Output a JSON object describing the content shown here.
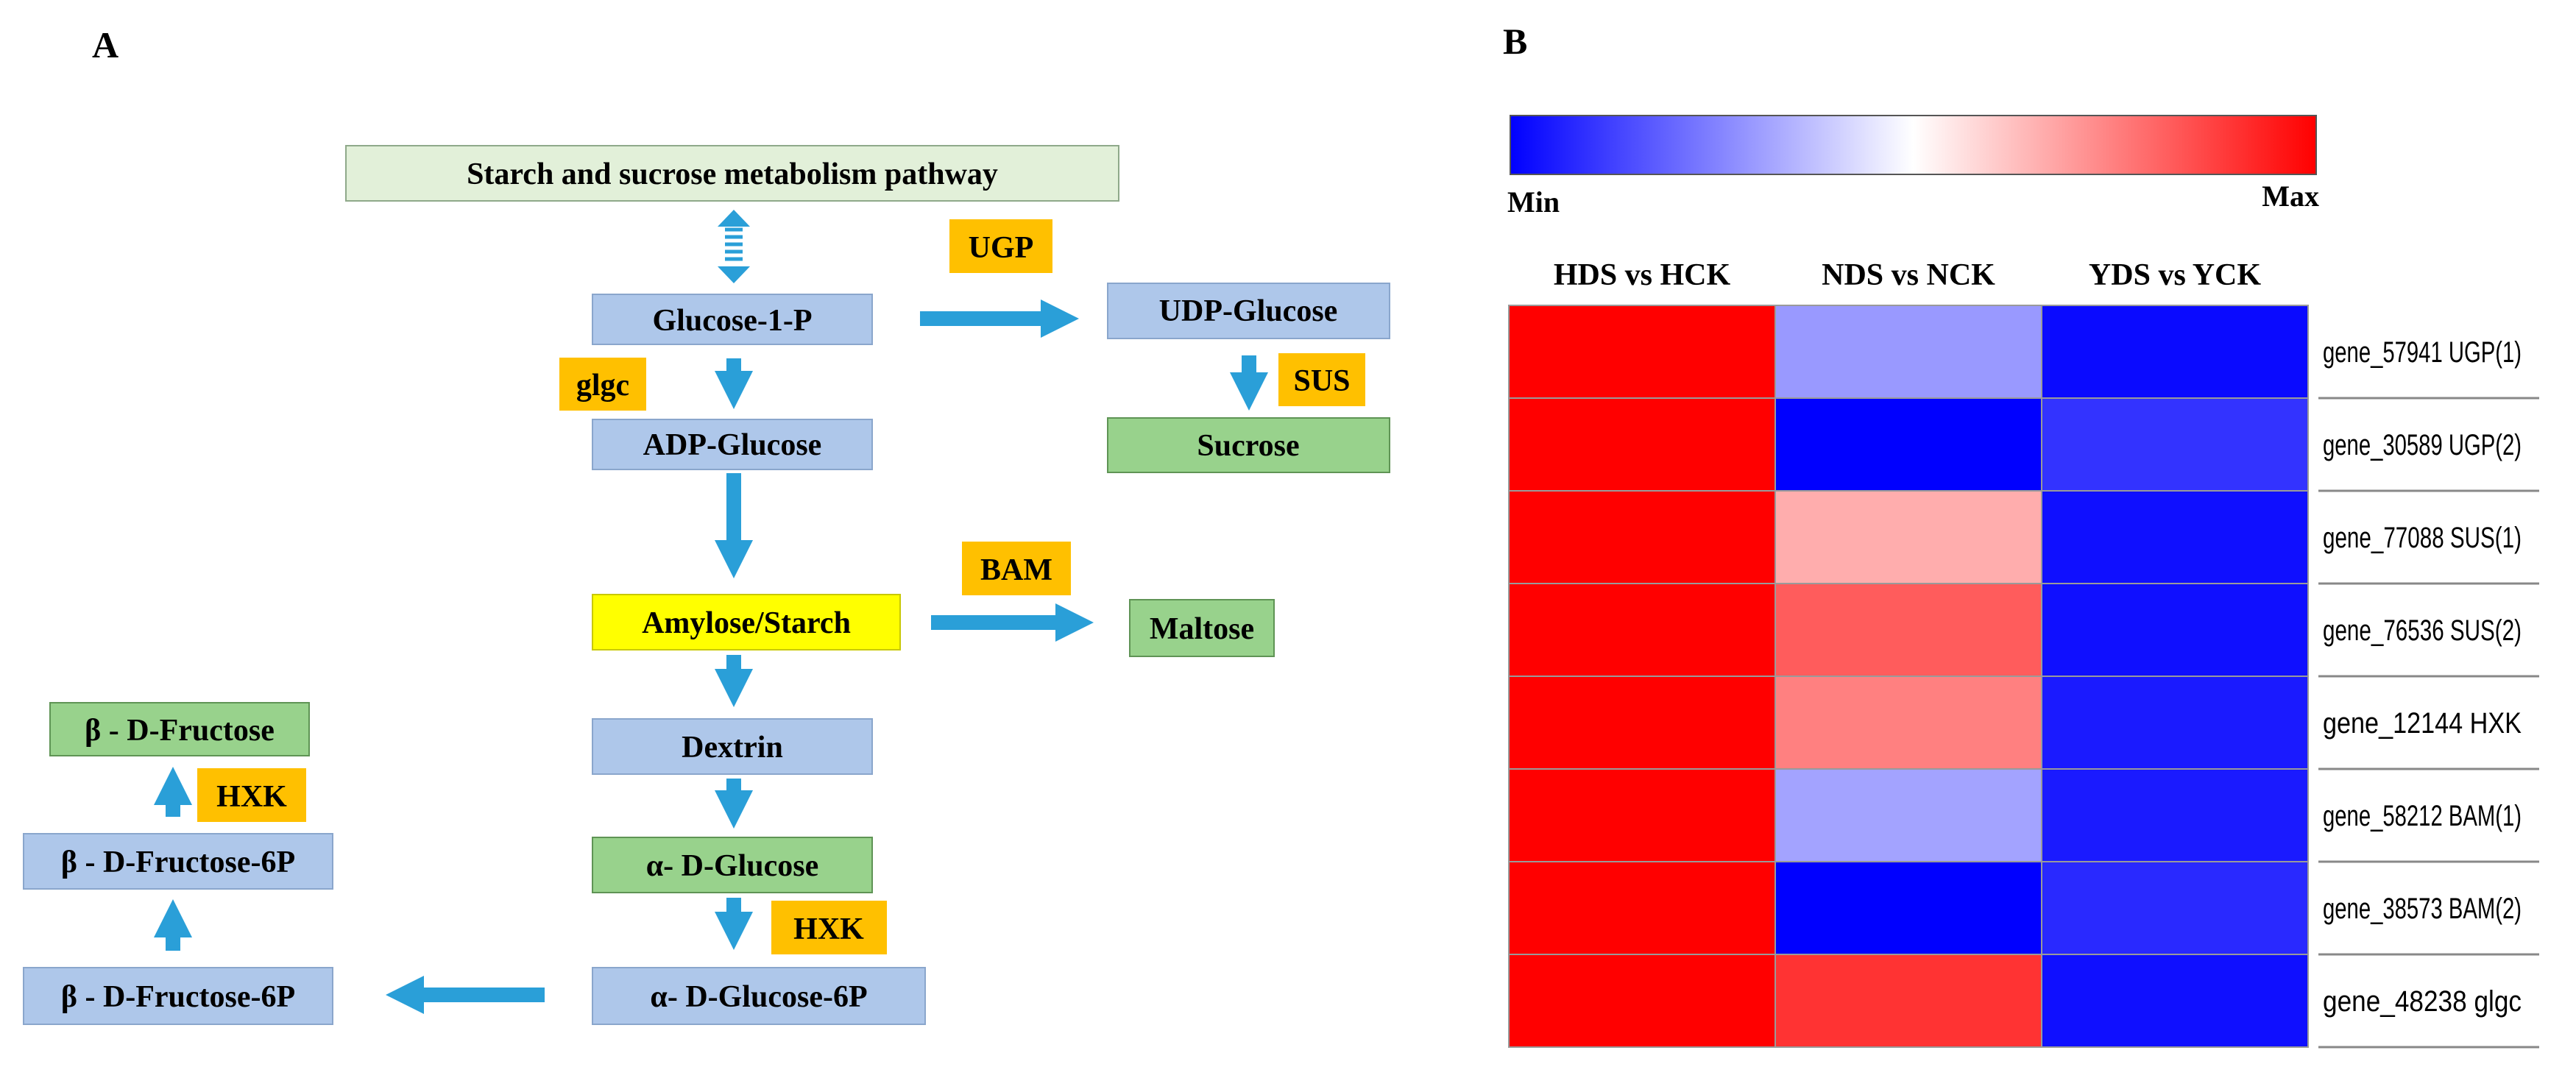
{
  "panel_a": {
    "label": "A",
    "nodes": {
      "pathway": "Starch and sucrose metabolism pathway",
      "glucose_1p": "Glucose-1-P",
      "udp_glucose": "UDP-Glucose",
      "adp_glucose": "ADP-Glucose",
      "sucrose": "Sucrose",
      "amylose_starch": "Amylose/Starch",
      "maltose": "Maltose",
      "dextrin": "Dextrin",
      "alpha_glucose": "α- D-Glucose",
      "alpha_glucose_6p": "α- D-Glucose-6P",
      "beta_fructose": "β - D-Fructose",
      "beta_fructose_6p_top": "β - D-Fructose-6P",
      "beta_fructose_6p_bottom": "β - D-Fructose-6P"
    },
    "enzymes": {
      "ugp": "UGP",
      "glgc": "glgc",
      "sus": "SUS",
      "bam": "BAM",
      "hxk_left": "HXK",
      "hxk_center": "HXK"
    },
    "colors": {
      "blue_node": "#aec7ea",
      "green_node": "#98d28c",
      "light_green_node": "#e2f0d9",
      "yellow_node": "#ffff00",
      "enzyme": "#ffc000",
      "arrow": "#2a9fd8"
    }
  },
  "panel_b": {
    "label": "B",
    "scale_min_label": "Min",
    "scale_max_label": "Max",
    "colors": {
      "min": "#0000ff",
      "mid": "#ffffff",
      "max": "#ff0000"
    },
    "columns": [
      "HDS vs HCK",
      "NDS vs NCK",
      "YDS vs YCK"
    ],
    "rows": [
      {
        "gene": "gene_57941 UGP(1)",
        "values": [
          1.0,
          0.3,
          0.02
        ]
      },
      {
        "gene": "gene_30589 UGP(2)",
        "values": [
          1.0,
          0.0,
          0.1
        ]
      },
      {
        "gene": "gene_77088 SUS(1)",
        "values": [
          1.0,
          0.66,
          0.03
        ]
      },
      {
        "gene": "gene_76536 SUS(2)",
        "values": [
          1.0,
          0.82,
          0.03
        ]
      },
      {
        "gene": "gene_12144 HXK",
        "values": [
          1.0,
          0.75,
          0.05
        ]
      },
      {
        "gene": "gene_58212 BAM(1)",
        "values": [
          1.0,
          0.32,
          0.05
        ]
      },
      {
        "gene": "gene_38573 BAM(2)",
        "values": [
          1.0,
          0.0,
          0.08
        ]
      },
      {
        "gene": "gene_48238 glgc",
        "values": [
          1.0,
          0.9,
          0.03
        ]
      }
    ]
  }
}
